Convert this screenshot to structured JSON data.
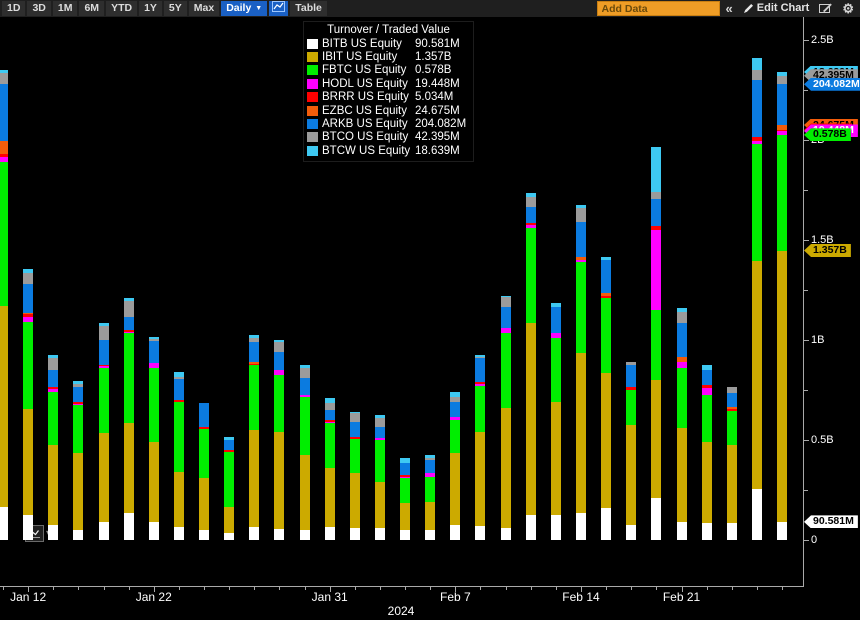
{
  "toolbar": {
    "ranges": [
      "1D",
      "3D",
      "1M",
      "6M",
      "YTD",
      "1Y",
      "5Y",
      "Max"
    ],
    "period_label": "Daily",
    "period_arrow": "▼",
    "table_label": "Table",
    "add_data_placeholder": "Add Data",
    "collapse_glyph": "«",
    "edit_chart_label": "Edit Chart",
    "gear_glyph": "⚙",
    "mini_caret_glyph": "▾"
  },
  "legend": {
    "title": "Turnover / Traded Value",
    "entries": [
      {
        "ticker": "BITB US Equity",
        "value": "90.581M"
      },
      {
        "ticker": "IBIT US Equity",
        "value": "1.357B"
      },
      {
        "ticker": "FBTC US Equity",
        "value": "0.578B"
      },
      {
        "ticker": "HODL US Equity",
        "value": "19.448M"
      },
      {
        "ticker": "BRRR US Equity",
        "value": "5.034M"
      },
      {
        "ticker": "EZBC US Equity",
        "value": "24.675M"
      },
      {
        "ticker": "ARKB US Equity",
        "value": "204.082M"
      },
      {
        "ticker": "BTCO US Equity",
        "value": "42.395M"
      },
      {
        "ticker": "BTCW US Equity",
        "value": "18.639M"
      }
    ]
  },
  "chart_data": {
    "type": "stacked-bar",
    "title": "Turnover / Traded Value",
    "unit": "USD millions",
    "bar_count": 32,
    "y_axis": {
      "side": "right",
      "min": 0,
      "max": 2500,
      "major_ticks": [
        {
          "label": "0",
          "value": 0
        },
        {
          "label": "0.5B",
          "value": 500
        },
        {
          "label": "1B",
          "value": 1000
        },
        {
          "label": "1.5B",
          "value": 1500
        },
        {
          "label": "2B",
          "value": 2000
        },
        {
          "label": "2.5B",
          "value": 2500
        }
      ],
      "minor_tick_values": [
        250,
        750,
        1250,
        1750,
        2250
      ]
    },
    "x_axis": {
      "year_label": "2024",
      "tick_labels": [
        {
          "label": "Jan 12",
          "bar_index": 1
        },
        {
          "label": "Jan 22",
          "bar_index": 6
        },
        {
          "label": "Jan 31",
          "bar_index": 13
        },
        {
          "label": "Feb 7",
          "bar_index": 18
        },
        {
          "label": "Feb 14",
          "bar_index": 23
        },
        {
          "label": "Feb 21",
          "bar_index": 27
        }
      ]
    },
    "series": [
      {
        "id": "bitb",
        "ticker": "BITB US Equity",
        "color": "#ffffff",
        "text_color": "#000000",
        "last_label": "90.581M",
        "values": [
          165,
          125,
          75,
          50,
          90,
          135,
          90,
          65,
          50,
          35,
          65,
          55,
          50,
          65,
          60,
          60,
          50,
          50,
          75,
          70,
          60,
          125,
          125,
          135,
          160,
          75,
          210,
          90,
          85,
          85,
          255,
          90.581
        ]
      },
      {
        "id": "ibit",
        "ticker": "IBIT US Equity",
        "color": "#ccaa00",
        "text_color": "#000000",
        "last_label": "1.357B",
        "values": [
          1005,
          530,
          400,
          385,
          445,
          450,
          400,
          275,
          260,
          130,
          485,
          485,
          375,
          295,
          275,
          230,
          135,
          140,
          360,
          470,
          600,
          960,
          565,
          800,
          675,
          500,
          590,
          470,
          405,
          390,
          1140,
          1357
        ]
      },
      {
        "id": "fbtc",
        "ticker": "FBTC US Equity",
        "color": "#00ee00",
        "text_color": "#000000",
        "last_label": "0.578B",
        "values": [
          720,
          435,
          265,
          240,
          325,
          450,
          370,
          350,
          245,
          275,
          325,
          285,
          290,
          225,
          170,
          210,
          125,
          125,
          165,
          230,
          375,
          475,
          320,
          455,
          375,
          175,
          350,
          300,
          235,
          170,
          585,
          578
        ]
      },
      {
        "id": "hodl",
        "ticker": "HODL US Equity",
        "color": "#ff00ff",
        "text_color": "#ffffff",
        "last_label": "19.448M",
        "values": [
          25,
          25,
          15,
          5,
          10,
          7,
          25,
          0,
          0,
          0,
          0,
          25,
          10,
          7,
          0,
          10,
          7,
          20,
          15,
          10,
          25,
          15,
          25,
          10,
          0,
          0,
          400,
          30,
          35,
          0,
          15,
          19.448
        ]
      },
      {
        "id": "brrr",
        "ticker": "BRRR US Equity",
        "color": "#ff0000",
        "text_color": "#ffffff",
        "last_label": "5.034M",
        "values": [
          15,
          15,
          10,
          10,
          5,
          8,
          0,
          10,
          8,
          8,
          7,
          0,
          0,
          8,
          10,
          0,
          8,
          0,
          0,
          10,
          0,
          10,
          0,
          0,
          10,
          15,
          20,
          0,
          15,
          10,
          20,
          5.034
        ]
      },
      {
        "id": "ezbc",
        "ticker": "EZBC US Equity",
        "color": "#f25c0a",
        "text_color": "#000000",
        "last_label": "24.675M",
        "values": [
          65,
          5,
          0,
          0,
          0,
          0,
          0,
          0,
          0,
          0,
          8,
          0,
          0,
          0,
          0,
          0,
          0,
          0,
          0,
          0,
          0,
          0,
          0,
          15,
          15,
          0,
          0,
          25,
          0,
          10,
          0,
          24.675
        ]
      },
      {
        "id": "arkb",
        "ticker": "ARKB US Equity",
        "color": "#0b7be0",
        "text_color": "#ffffff",
        "last_label": "204.082M",
        "values": [
          285,
          145,
          85,
          75,
          125,
          65,
          110,
          105,
          120,
          50,
          100,
          90,
          85,
          50,
          75,
          55,
          60,
          65,
          75,
          120,
          105,
          80,
          130,
          175,
          165,
          110,
          135,
          170,
          75,
          70,
          285,
          204.082
        ]
      },
      {
        "id": "btco",
        "ticker": "BTCO US Equity",
        "color": "#9b9b9b",
        "text_color": "#000000",
        "last_label": "42.395M",
        "values": [
          55,
          55,
          60,
          15,
          70,
          80,
          10,
          10,
          0,
          0,
          20,
          50,
          50,
          35,
          45,
          45,
          0,
          10,
          25,
          7,
          50,
          50,
          0,
          70,
          0,
          15,
          35,
          55,
          0,
          30,
          50,
          42.395
        ]
      },
      {
        "id": "btcw",
        "ticker": "BTCW US Equity",
        "color": "#3ec9f2",
        "text_color": "#000000",
        "last_label": "18.639M",
        "values": [
          15,
          20,
          15,
          15,
          15,
          15,
          10,
          25,
          2,
          15,
          15,
          10,
          15,
          25,
          5,
          15,
          25,
          15,
          25,
          8,
          5,
          20,
          20,
          15,
          15,
          0,
          225,
          20,
          25,
          0,
          60,
          18.639
        ]
      }
    ]
  }
}
